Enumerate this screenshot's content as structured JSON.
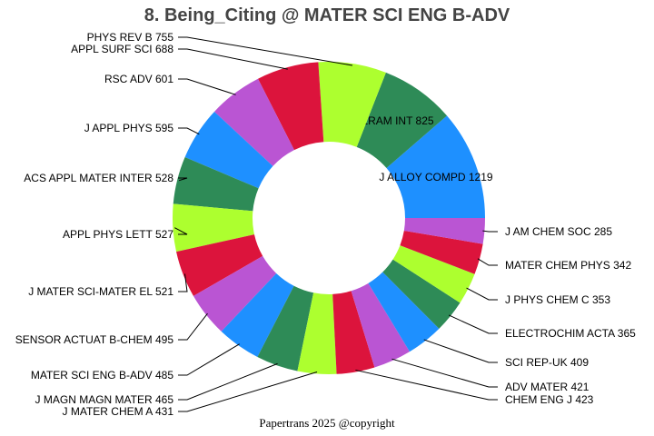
{
  "chart_data": {
    "type": "pie",
    "donut": true,
    "title": "8. Being_Citing @ MATER SCI ENG B-ADV",
    "footer": "Papertrans 2025 @copyright",
    "start": "3 o'clock, counterclockwise",
    "colors": [
      "#1E90FF",
      "#2E8B57",
      "#ADFF2F",
      "#DC143C",
      "#BA55D3"
    ],
    "slices": [
      {
        "label": "J ALLOY COMPD",
        "value": 1219
      },
      {
        "label": "CERAM INT",
        "value": 825
      },
      {
        "label": "PHYS REV B",
        "value": 755
      },
      {
        "label": "APPL SURF SCI",
        "value": 688
      },
      {
        "label": "RSC ADV",
        "value": 601
      },
      {
        "label": "J APPL PHYS",
        "value": 595
      },
      {
        "label": "ACS APPL MATER INTER",
        "value": 528
      },
      {
        "label": "APPL PHYS LETT",
        "value": 527
      },
      {
        "label": "J MATER SCI-MATER EL",
        "value": 521
      },
      {
        "label": "SENSOR ACTUAT B-CHEM",
        "value": 495
      },
      {
        "label": "MATER SCI ENG B-ADV",
        "value": 485
      },
      {
        "label": "J MAGN MAGN MATER",
        "value": 465
      },
      {
        "label": "J MATER CHEM A",
        "value": 431
      },
      {
        "label": "CHEM ENG J",
        "value": 423
      },
      {
        "label": "ADV MATER",
        "value": 421
      },
      {
        "label": "SCI REP-UK",
        "value": 409
      },
      {
        "label": "ELECTROCHIM ACTA",
        "value": 365
      },
      {
        "label": "J PHYS CHEM C",
        "value": 353
      },
      {
        "label": "MATER CHEM PHYS",
        "value": 342
      },
      {
        "label": "J AM CHEM SOC",
        "value": 285
      }
    ]
  }
}
